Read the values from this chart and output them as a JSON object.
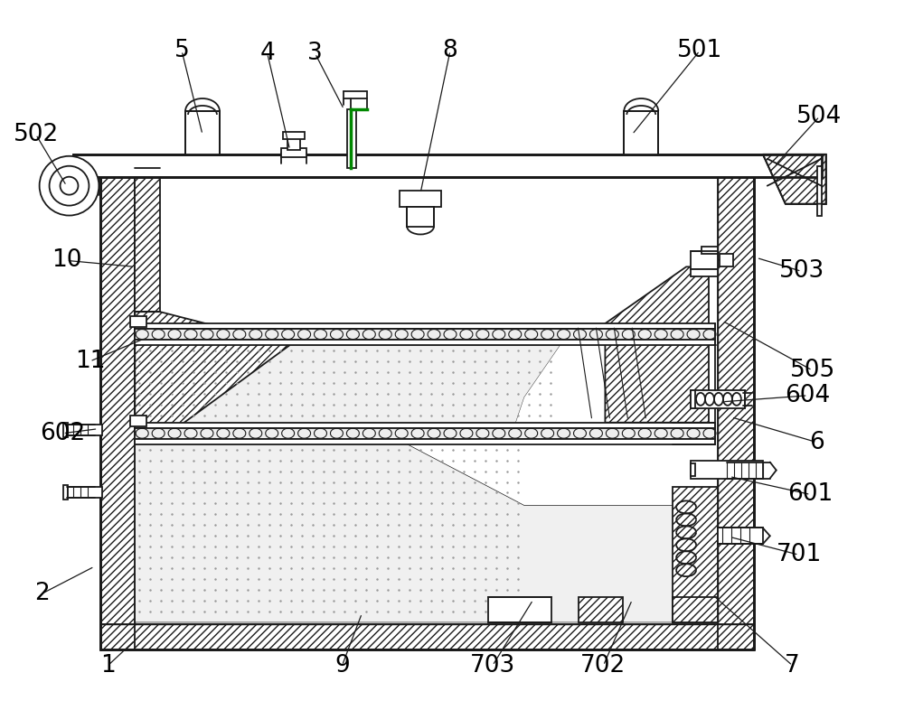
{
  "bg_color": "#ffffff",
  "line_color": "#1a1a1a",
  "green_color": "#008800",
  "figsize": [
    10.0,
    7.86
  ],
  "dpi": 100,
  "annotations": [
    [
      "1",
      118,
      738,
      148,
      710
    ],
    [
      "2",
      45,
      658,
      103,
      628
    ],
    [
      "3",
      348,
      58,
      380,
      120
    ],
    [
      "4",
      295,
      58,
      320,
      165
    ],
    [
      "5",
      200,
      55,
      223,
      148
    ],
    [
      "6",
      905,
      490,
      810,
      462
    ],
    [
      "7",
      878,
      738,
      790,
      660
    ],
    [
      "8",
      498,
      55,
      465,
      213
    ],
    [
      "9",
      378,
      738,
      400,
      680
    ],
    [
      "10",
      72,
      288,
      148,
      295
    ],
    [
      "11",
      98,
      400,
      158,
      375
    ],
    [
      "501",
      775,
      55,
      700,
      148
    ],
    [
      "502",
      38,
      148,
      72,
      205
    ],
    [
      "503",
      888,
      300,
      838,
      285
    ],
    [
      "504",
      908,
      128,
      858,
      183
    ],
    [
      "505",
      900,
      410,
      800,
      355
    ],
    [
      "601",
      898,
      548,
      808,
      528
    ],
    [
      "602",
      68,
      480,
      107,
      475
    ],
    [
      "604",
      895,
      438,
      800,
      445
    ],
    [
      "701",
      885,
      615,
      808,
      595
    ],
    [
      "702",
      668,
      738,
      700,
      665
    ],
    [
      "703",
      545,
      738,
      590,
      665
    ]
  ]
}
